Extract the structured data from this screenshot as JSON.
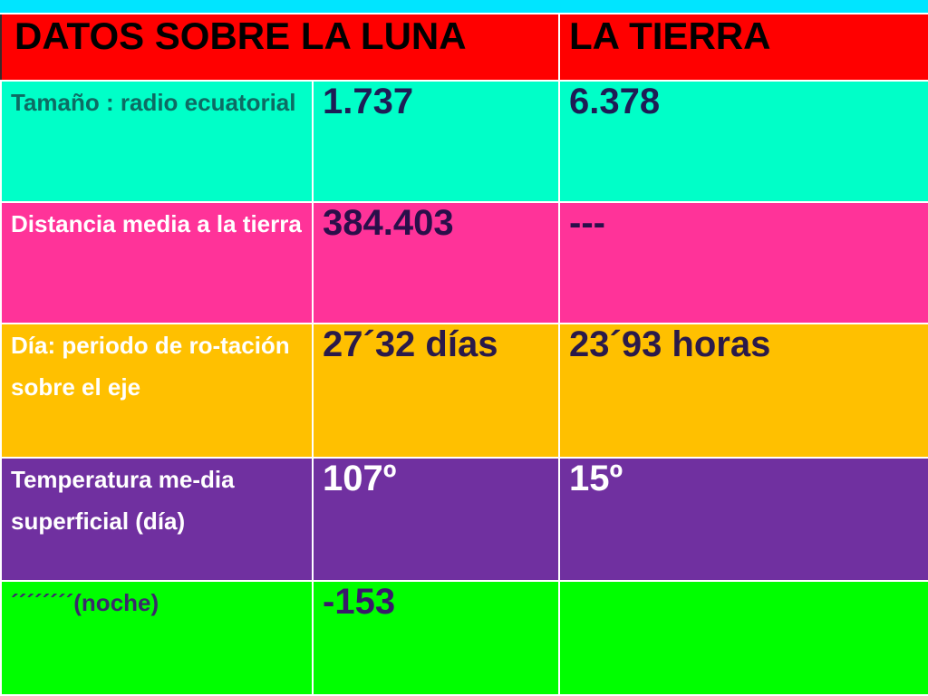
{
  "header": {
    "col1": "DATOS  SOBRE  LA  LUNA",
    "col2": "LA  TIERRA"
  },
  "rows": [
    {
      "label": "Tamaño : radio ecuatorial",
      "luna": "1.737",
      "tierra": "6.378"
    },
    {
      "label": "Distancia media a la tierra",
      "luna": "384.403",
      "tierra": "---"
    },
    {
      "label": "Día: periodo de ro-tación sobre el eje",
      "luna": "27´32 días",
      "tierra": "23´93 horas"
    },
    {
      "label": "Temperatura me-dia superficial (día)",
      "luna": "107º",
      "tierra": "15º"
    },
    {
      "label": "´´´´´´´´(noche)",
      "luna": "-153",
      "tierra": ""
    }
  ],
  "colors": {
    "top_bar": "#00e5ff",
    "header": "#ff0000",
    "row1": "#00ffc8",
    "row2": "#ff3399",
    "row3": "#ffc000",
    "row4": "#7030a0",
    "row5": "#00ff00"
  }
}
